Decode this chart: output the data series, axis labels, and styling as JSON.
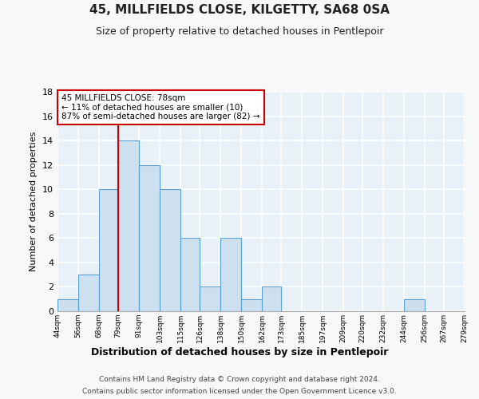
{
  "title": "45, MILLFIELDS CLOSE, KILGETTY, SA68 0SA",
  "subtitle": "Size of property relative to detached houses in Pentlepoir",
  "xlabel": "Distribution of detached houses by size in Pentlepoir",
  "ylabel": "Number of detached properties",
  "bin_edges": [
    44,
    56,
    68,
    79,
    91,
    103,
    115,
    126,
    138,
    150,
    162,
    173,
    185,
    197,
    209,
    220,
    232,
    244,
    256,
    267,
    279
  ],
  "bin_counts": [
    1,
    3,
    10,
    14,
    12,
    10,
    6,
    2,
    6,
    1,
    2,
    0,
    0,
    0,
    0,
    0,
    0,
    1,
    0,
    0
  ],
  "bar_color": "#cce0f0",
  "bar_edge_color": "#5a9fd4",
  "ylim": [
    0,
    18
  ],
  "yticks": [
    0,
    2,
    4,
    6,
    8,
    10,
    12,
    14,
    16,
    18
  ],
  "property_line_x": 79,
  "property_line_color": "#cc0000",
  "annotation_title": "45 MILLFIELDS CLOSE: 78sqm",
  "annotation_line1": "← 11% of detached houses are smaller (10)",
  "annotation_line2": "87% of semi-detached houses are larger (82) →",
  "footnote1": "Contains HM Land Registry data © Crown copyright and database right 2024.",
  "footnote2": "Contains public sector information licensed under the Open Government Licence v3.0.",
  "tick_labels": [
    "44sqm",
    "56sqm",
    "68sqm",
    "79sqm",
    "91sqm",
    "103sqm",
    "115sqm",
    "126sqm",
    "138sqm",
    "150sqm",
    "162sqm",
    "173sqm",
    "185sqm",
    "197sqm",
    "209sqm",
    "220sqm",
    "232sqm",
    "244sqm",
    "256sqm",
    "267sqm",
    "279sqm"
  ],
  "bg_color": "#e8f0f8",
  "grid_color": "#ffffff",
  "plot_bg_color": "#e8f0f8"
}
